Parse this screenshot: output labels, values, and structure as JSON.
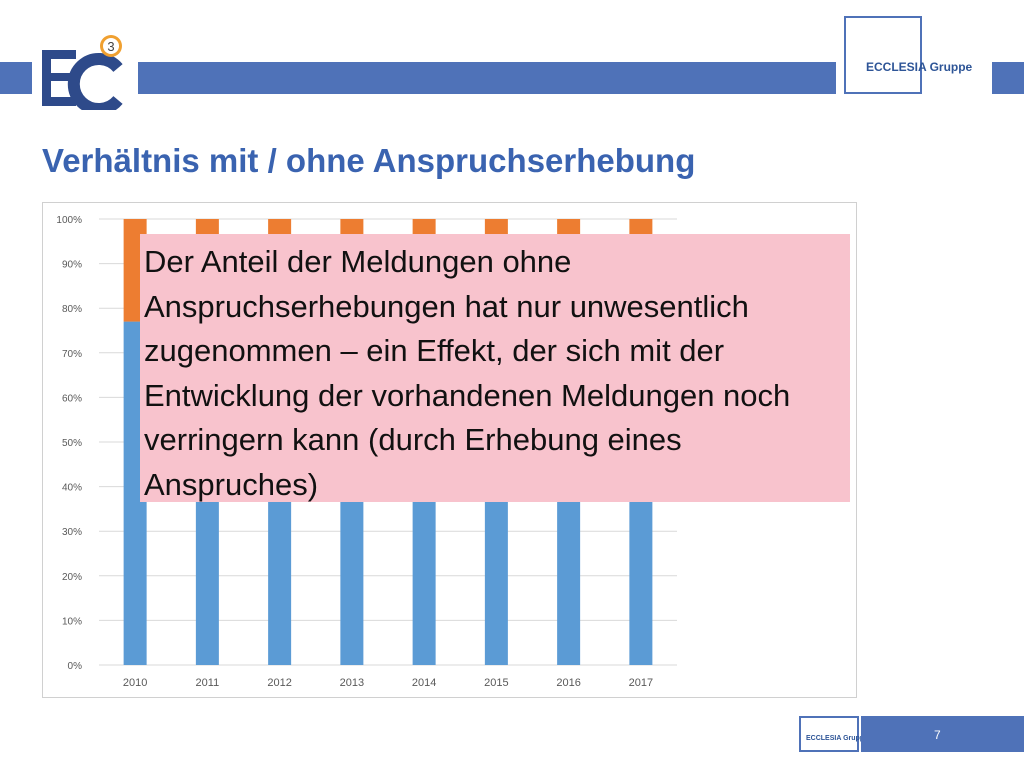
{
  "slide": {
    "title": "Verhältnis mit / ohne Anspruchserhebung",
    "brand": "ECCLESIA Gruppe",
    "logo_badge": "3",
    "page_number": "7",
    "callout_text": "Der Anteil der Meldungen ohne Anspruchserhebungen hat nur unwesentlich zugenommen – ein Effekt, der sich mit der Entwicklung der vorhandenen Meldungen noch verringern kann (durch Erhebung eines Anspruches)"
  },
  "colors": {
    "accent": "#4f72b8",
    "title": "#3a63b0",
    "series_bottom": "#5b9bd5",
    "series_top": "#ed7d31",
    "callout_bg": "#f8c3cd"
  },
  "chart_data": {
    "type": "bar",
    "stacked": true,
    "categories": [
      "2010",
      "2011",
      "2012",
      "2013",
      "2014",
      "2015",
      "2016",
      "2017"
    ],
    "series": [
      {
        "values": [
          77,
          96,
          96,
          96,
          96,
          96,
          96,
          96
        ]
      },
      {
        "values": [
          23,
          4,
          4,
          4,
          4,
          4,
          4,
          4
        ]
      }
    ],
    "y_ticks": [
      "0%",
      "10%",
      "20%",
      "30%",
      "40%",
      "50%",
      "60%",
      "70%",
      "80%",
      "90%",
      "100%"
    ],
    "ylim": [
      0,
      100
    ],
    "grid": true,
    "legend": "none"
  }
}
